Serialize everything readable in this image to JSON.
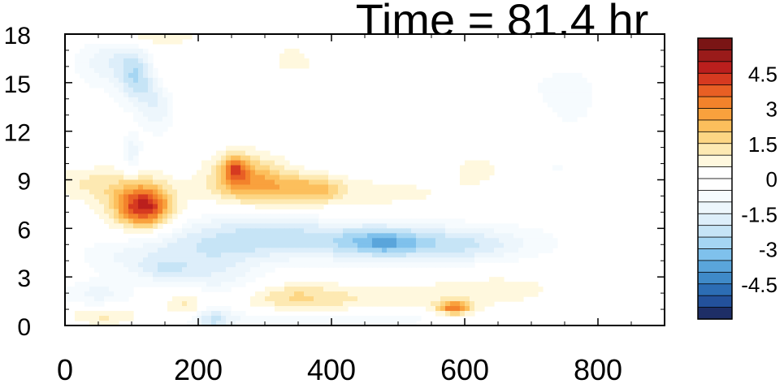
{
  "chart_data": {
    "type": "heatmap",
    "title": "Time = 81.4 hr",
    "xlabel": "",
    "ylabel": "",
    "xlim": [
      0,
      900
    ],
    "ylim": [
      0,
      18
    ],
    "x_ticks": [
      0,
      200,
      400,
      600,
      800
    ],
    "y_ticks": [
      0,
      3,
      6,
      9,
      12,
      15,
      18
    ],
    "grid": false,
    "legend": "colorbar-right",
    "colorbar": {
      "labels": [
        "4.5",
        "3",
        "1.5",
        "0",
        "-1.5",
        "-3",
        "-4.5"
      ],
      "label_values": [
        4.5,
        3,
        1.5,
        0,
        -1.5,
        -3,
        -4.5
      ],
      "levels": [
        -5.5,
        -5,
        -4.5,
        -4,
        -3.5,
        -3,
        -2.5,
        -2,
        -1.5,
        -1,
        -0.5,
        0,
        0.5,
        1,
        1.5,
        2,
        2.5,
        3,
        3.5,
        4,
        4.5,
        5,
        5.5
      ],
      "colors": [
        "#1e2e66",
        "#23519b",
        "#2c6db4",
        "#3f8ac8",
        "#5aa5db",
        "#7fc1ec",
        "#a6d6f3",
        "#c6e4f6",
        "#ddeefa",
        "#edf6fc",
        "#f6fbfe",
        "#ffffff",
        "#ffffff",
        "#fff8de",
        "#fde9b2",
        "#fdd684",
        "#fcbf5c",
        "#f9a13d",
        "#f3822b",
        "#e85f24",
        "#d63a20",
        "#bb1f1d",
        "#9a1b1a",
        "#7a1515"
      ]
    },
    "features": [
      {
        "x": 450,
        "y": 5.2,
        "sx": 170,
        "sy": 0.9,
        "value": -2.0
      },
      {
        "x": 480,
        "y": 5.1,
        "sx": 40,
        "sy": 0.6,
        "value": -1.6
      },
      {
        "x": 600,
        "y": 4.8,
        "sx": 60,
        "sy": 0.7,
        "value": -0.9
      },
      {
        "x": 280,
        "y": 5.8,
        "sx": 90,
        "sy": 1.0,
        "value": -1.0
      },
      {
        "x": 230,
        "y": 3.0,
        "sx": 50,
        "sy": 1.6,
        "value": -1.2
      },
      {
        "x": 220,
        "y": 0.5,
        "sx": 20,
        "sy": 0.9,
        "value": -1.8
      },
      {
        "x": 400,
        "y": 0.4,
        "sx": 140,
        "sy": 0.35,
        "value": -1.1
      },
      {
        "x": 120,
        "y": 4.2,
        "sx": 70,
        "sy": 0.9,
        "value": -1.1
      },
      {
        "x": 50,
        "y": 1.9,
        "sx": 40,
        "sy": 0.6,
        "value": -1.2
      },
      {
        "x": 150,
        "y": 3.4,
        "sx": 30,
        "sy": 0.5,
        "value": -1.0
      },
      {
        "x": 70,
        "y": 16.3,
        "sx": 40,
        "sy": 1.2,
        "value": -1.4
      },
      {
        "x": 110,
        "y": 15.2,
        "sx": 20,
        "sy": 1.2,
        "value": -2.1
      },
      {
        "x": 140,
        "y": 13.8,
        "sx": 18,
        "sy": 1.4,
        "value": -1.5
      },
      {
        "x": 100,
        "y": 10.6,
        "sx": 10,
        "sy": 0.9,
        "value": -1.4
      },
      {
        "x": 760,
        "y": 14.2,
        "sx": 50,
        "sy": 2.5,
        "value": -0.6
      },
      {
        "x": 620,
        "y": 15.6,
        "sx": 70,
        "sy": 1.4,
        "value": -0.4
      },
      {
        "x": 730,
        "y": 9.4,
        "sx": 40,
        "sy": 1.0,
        "value": -0.45
      },
      {
        "x": 120,
        "y": 7.3,
        "sx": 28,
        "sy": 0.9,
        "value": 3.8
      },
      {
        "x": 100,
        "y": 7.8,
        "sx": 40,
        "sy": 1.3,
        "value": 1.2
      },
      {
        "x": 270,
        "y": 9.3,
        "sx": 40,
        "sy": 1.0,
        "value": 2.0
      },
      {
        "x": 255,
        "y": 9.7,
        "sx": 12,
        "sy": 0.6,
        "value": 2.3
      },
      {
        "x": 320,
        "y": 8.5,
        "sx": 50,
        "sy": 0.7,
        "value": 1.3
      },
      {
        "x": 420,
        "y": 8.1,
        "sx": 160,
        "sy": 0.9,
        "value": 0.7
      },
      {
        "x": 380,
        "y": 8.4,
        "sx": 25,
        "sy": 0.5,
        "value": 1.2
      },
      {
        "x": 585,
        "y": 1.1,
        "sx": 18,
        "sy": 0.3,
        "value": 3.2
      },
      {
        "x": 460,
        "y": 1.6,
        "sx": 180,
        "sy": 0.7,
        "value": 0.7
      },
      {
        "x": 340,
        "y": 1.8,
        "sx": 60,
        "sy": 0.6,
        "value": 1.1
      },
      {
        "x": 195,
        "y": 1.3,
        "sx": 30,
        "sy": 0.6,
        "value": 1.6
      },
      {
        "x": 60,
        "y": 0.6,
        "sx": 40,
        "sy": 0.4,
        "value": 1.2
      },
      {
        "x": 650,
        "y": 2.6,
        "sx": 90,
        "sy": 0.7,
        "value": 0.5
      },
      {
        "x": 30,
        "y": 8.8,
        "sx": 40,
        "sy": 0.7,
        "value": 0.9
      },
      {
        "x": 120,
        "y": 17.9,
        "sx": 60,
        "sy": 0.5,
        "value": 1.0
      },
      {
        "x": 140,
        "y": 15.5,
        "sx": 20,
        "sy": 1.2,
        "value": 1.1
      },
      {
        "x": 620,
        "y": 9.8,
        "sx": 35,
        "sy": 0.8,
        "value": 0.6
      },
      {
        "x": 480,
        "y": 16.1,
        "sx": 160,
        "sy": 0.5,
        "value": 0.5
      },
      {
        "x": 340,
        "y": 16.7,
        "sx": 20,
        "sy": 0.6,
        "value": 0.5
      }
    ]
  }
}
